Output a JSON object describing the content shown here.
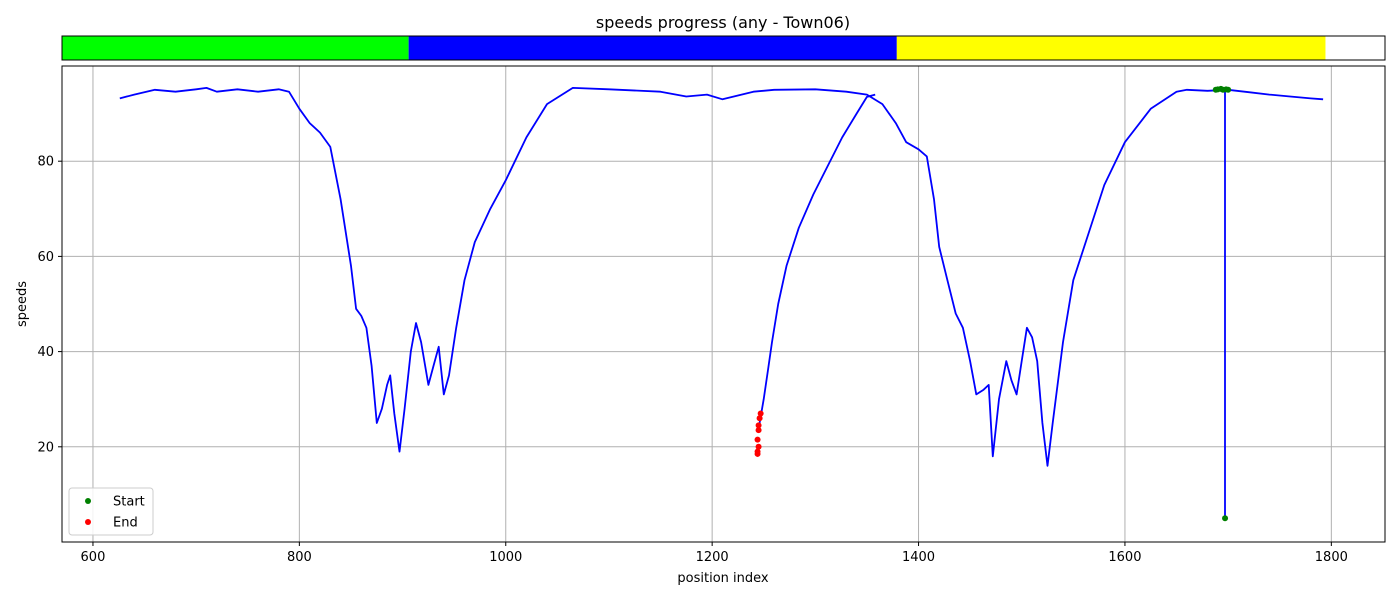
{
  "chart_data": {
    "type": "line",
    "title": "speeds progress (any - Town06)",
    "xlabel": "position index",
    "ylabel": "speeds",
    "xlim": [
      570,
      1852
    ],
    "ylim": [
      0,
      100
    ],
    "xticks": [
      600,
      800,
      1000,
      1200,
      1400,
      1600,
      1800
    ],
    "yticks": [
      20,
      40,
      60,
      80
    ],
    "grid": true,
    "legend_position": "bottom-left",
    "legend": [
      {
        "label": "Start",
        "color": "#008000"
      },
      {
        "label": "End",
        "color": "#ff0000"
      }
    ],
    "progress_bar": {
      "range": [
        0,
        100
      ],
      "segments": [
        {
          "color": "#00ff00",
          "start": 0,
          "end": 26.2
        },
        {
          "color": "#0000ff",
          "start": 26.2,
          "end": 63.1
        },
        {
          "color": "#ffff00",
          "start": 63.1,
          "end": 100
        }
      ],
      "filled_fraction": 0.955
    },
    "series": [
      {
        "color": "#0000ff",
        "points": [
          [
            626,
            93.2
          ],
          [
            640,
            94.0
          ],
          [
            660,
            95.0
          ],
          [
            680,
            94.6
          ],
          [
            700,
            95.1
          ],
          [
            710,
            95.4
          ],
          [
            720,
            94.6
          ],
          [
            740,
            95.1
          ],
          [
            760,
            94.6
          ],
          [
            780,
            95.1
          ],
          [
            790,
            94.6
          ],
          [
            800,
            91.0
          ],
          [
            810,
            88.0
          ],
          [
            820,
            86.0
          ],
          [
            830,
            83.0
          ],
          [
            840,
            72.0
          ],
          [
            850,
            58.0
          ],
          [
            855,
            49.0
          ],
          [
            860,
            47.5
          ],
          [
            865,
            45.0
          ],
          [
            870,
            37.0
          ],
          [
            875,
            25.0
          ],
          [
            880,
            28.0
          ],
          [
            885,
            33.0
          ],
          [
            888,
            35.0
          ],
          [
            892,
            27.0
          ],
          [
            897,
            19.0
          ],
          [
            902,
            28.0
          ],
          [
            908,
            40.0
          ],
          [
            913,
            46.0
          ],
          [
            918,
            42.0
          ],
          [
            925,
            33.0
          ],
          [
            930,
            37.0
          ],
          [
            935,
            41.0
          ],
          [
            940,
            31.0
          ],
          [
            945,
            35.0
          ],
          [
            952,
            45.0
          ],
          [
            960,
            55.0
          ],
          [
            970,
            63.0
          ],
          [
            985,
            70.0
          ],
          [
            1000,
            76.0
          ],
          [
            1020,
            85.0
          ],
          [
            1040,
            92.0
          ],
          [
            1065,
            95.4
          ],
          [
            1100,
            95.1
          ],
          [
            1150,
            94.6
          ],
          [
            1175,
            93.6
          ],
          [
            1195,
            94.0
          ],
          [
            1210,
            93.0
          ],
          [
            1240,
            94.6
          ],
          [
            1260,
            95.0
          ],
          [
            1300,
            95.1
          ],
          [
            1330,
            94.6
          ],
          [
            1350,
            94.0
          ],
          [
            1365,
            92.0
          ],
          [
            1378,
            88.0
          ],
          [
            1388,
            84.0
          ],
          [
            1400,
            82.5
          ],
          [
            1408,
            81.0
          ],
          [
            1415,
            72.0
          ],
          [
            1420,
            62.0
          ],
          [
            1428,
            55.0
          ],
          [
            1436,
            48.0
          ],
          [
            1443,
            45.0
          ],
          [
            1450,
            38.0
          ],
          [
            1456,
            31.0
          ],
          [
            1463,
            32.0
          ],
          [
            1468,
            33.0
          ],
          [
            1472,
            18.0
          ],
          [
            1478,
            30.0
          ],
          [
            1485,
            38.0
          ],
          [
            1490,
            34.0
          ],
          [
            1495,
            31.0
          ],
          [
            1500,
            38.0
          ],
          [
            1505,
            45.0
          ],
          [
            1510,
            43.0
          ],
          [
            1515,
            38.0
          ],
          [
            1520,
            25.0
          ],
          [
            1525,
            16.0
          ],
          [
            1530,
            25.0
          ],
          [
            1540,
            42.0
          ],
          [
            1550,
            55.0
          ],
          [
            1565,
            65.0
          ],
          [
            1580,
            75.0
          ],
          [
            1600,
            84.0
          ],
          [
            1625,
            91.0
          ],
          [
            1650,
            94.6
          ],
          [
            1660,
            95.0
          ],
          [
            1680,
            94.8
          ],
          [
            1700,
            95.0
          ],
          [
            1720,
            94.5
          ],
          [
            1740,
            94.0
          ],
          [
            1760,
            93.6
          ],
          [
            1780,
            93.2
          ],
          [
            1792,
            93.0
          ]
        ]
      },
      {
        "color": "#0000ff",
        "points": [
          [
            1246,
            25.0
          ],
          [
            1250,
            30.0
          ],
          [
            1254,
            36.0
          ],
          [
            1258,
            42.0
          ],
          [
            1264,
            50.0
          ],
          [
            1272,
            58.0
          ],
          [
            1284,
            66.0
          ],
          [
            1298,
            73.0
          ],
          [
            1312,
            79.0
          ],
          [
            1326,
            85.0
          ],
          [
            1340,
            90.0
          ],
          [
            1350,
            93.5
          ],
          [
            1358,
            94.0
          ]
        ]
      },
      {
        "color": "#0000ff",
        "points": [
          [
            1697,
            95.0
          ],
          [
            1697,
            5.0
          ]
        ]
      }
    ],
    "start_points": [
      [
        1688,
        95.0
      ],
      [
        1690,
        95.1
      ],
      [
        1693,
        95.2
      ],
      [
        1695,
        95.0
      ],
      [
        1698,
        95.1
      ],
      [
        1700,
        95.0
      ],
      [
        1697,
        5.0
      ]
    ],
    "end_points": [
      [
        1244,
        18.5
      ],
      [
        1244,
        19.0
      ],
      [
        1245,
        20.0
      ],
      [
        1244,
        21.5
      ],
      [
        1245,
        23.5
      ],
      [
        1245,
        24.5
      ],
      [
        1246,
        26.0
      ],
      [
        1247,
        27.0
      ]
    ]
  }
}
